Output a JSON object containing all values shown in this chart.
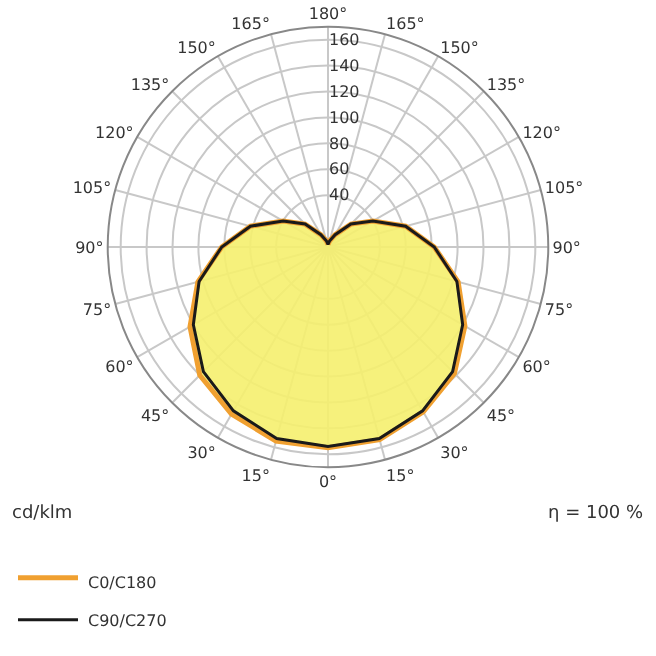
{
  "chart_data": {
    "type": "radar",
    "categories": [
      "180°",
      "165°",
      "150°",
      "135°",
      "120°",
      "105°",
      "90°",
      "75°",
      "60°",
      "45°",
      "30°",
      "15°",
      "0°",
      "15°",
      "30°",
      "45°",
      "60°",
      "75°",
      "90°",
      "105°",
      "120°",
      "135°",
      "150°",
      "165°"
    ],
    "series": [
      {
        "name": "C0/C180",
        "color": "#f0a030",
        "values": [
          2,
          5,
          11,
          25,
          40,
          62,
          82,
          104,
          122,
          138,
          147,
          154,
          155,
          155,
          149,
          140,
          123,
          104,
          82,
          62,
          40,
          25,
          11,
          5
        ]
      },
      {
        "name": "C90/C270",
        "color": "#1a1a1a",
        "values": [
          2,
          5,
          11,
          25,
          40,
          62,
          82,
          103,
          120,
          136,
          146,
          153,
          154,
          153,
          146,
          136,
          120,
          103,
          82,
          62,
          40,
          25,
          11,
          5
        ]
      }
    ],
    "ylim": [
      0,
      170
    ],
    "yticks": [
      40,
      60,
      80,
      100,
      120,
      140,
      160
    ],
    "grid": true,
    "legend": "bottom left",
    "annotations": [
      "cd/klm",
      "η = 100 %"
    ]
  }
}
